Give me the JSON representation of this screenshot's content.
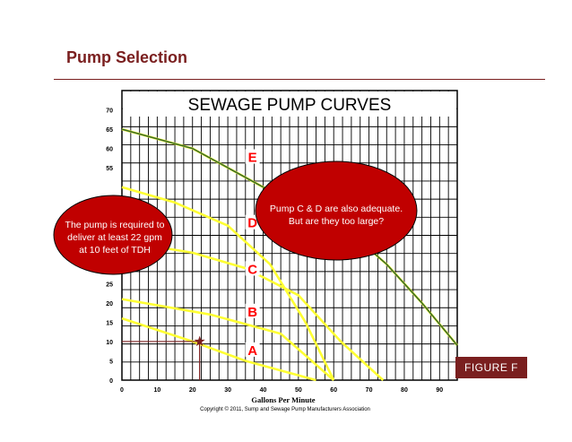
{
  "slide": {
    "title": "Pump Selection",
    "figure_label": "FIGURE F",
    "copyright": "Copyright © 2011, Sump and Sewage Pump Manufacturers Association"
  },
  "callouts": {
    "left": [
      "The pump is required to",
      "deliver at least 22 gpm",
      "at 10 feet of TDH"
    ],
    "right": [
      "Pump C & D are also adequate.",
      "But are they too large?"
    ]
  },
  "colors": {
    "accent": "#7a1f1f",
    "pump_curve": "#ffff33",
    "system_curve": "#3a6b2a",
    "callout_fill": "#c00000",
    "pump_label": "#ff0000"
  },
  "chart_data": {
    "type": "line",
    "title": "SEWAGE PUMP CURVES",
    "xlabel": "Gallons Per Minute",
    "ylabel": "",
    "xlim": [
      0,
      95
    ],
    "ylim": [
      0,
      75
    ],
    "x_ticks": [
      0,
      10,
      20,
      30,
      40,
      50,
      60,
      70,
      80,
      90
    ],
    "y_ticks": [
      0,
      5,
      10,
      15,
      20,
      25,
      55,
      60,
      65,
      70
    ],
    "grid": true,
    "series": [
      {
        "name": "A",
        "type": "pump",
        "label_at": [
          37,
          7
        ],
        "points": [
          [
            0,
            16
          ],
          [
            20,
            10
          ],
          [
            35,
            5
          ],
          [
            55,
            0
          ]
        ]
      },
      {
        "name": "B",
        "type": "pump",
        "label_at": [
          37,
          17
        ],
        "points": [
          [
            0,
            21
          ],
          [
            25,
            17
          ],
          [
            45,
            12
          ],
          [
            60,
            0
          ]
        ]
      },
      {
        "name": "C",
        "type": "pump",
        "label_at": [
          37,
          28
        ],
        "points": [
          [
            0,
            36
          ],
          [
            20,
            33
          ],
          [
            35,
            29
          ],
          [
            50,
            22
          ],
          [
            62,
            10
          ],
          [
            74,
            0
          ]
        ]
      },
      {
        "name": "D",
        "type": "pump",
        "label_at": [
          37,
          40
        ],
        "points": [
          [
            0,
            50
          ],
          [
            15,
            46
          ],
          [
            30,
            40
          ],
          [
            42,
            30
          ],
          [
            52,
            15
          ],
          [
            60,
            0
          ]
        ]
      },
      {
        "name": "E",
        "type": "pump",
        "label_at": [
          37,
          57
        ],
        "points": [
          [
            0,
            65
          ],
          [
            20,
            60
          ],
          [
            30,
            55
          ],
          [
            40,
            50
          ],
          [
            55,
            44
          ],
          [
            65,
            38
          ],
          [
            75,
            30
          ],
          [
            85,
            20
          ],
          [
            95,
            9
          ]
        ]
      },
      {
        "name": "",
        "type": "system",
        "points": [
          [
            0,
            65
          ],
          [
            20,
            60
          ],
          [
            30,
            55
          ],
          [
            40,
            50
          ],
          [
            55,
            44
          ],
          [
            65,
            38
          ],
          [
            75,
            30
          ],
          [
            85,
            20
          ],
          [
            95,
            9
          ]
        ]
      }
    ],
    "annotations": [
      {
        "type": "requirement_point",
        "x": 22,
        "y": 10
      }
    ]
  }
}
